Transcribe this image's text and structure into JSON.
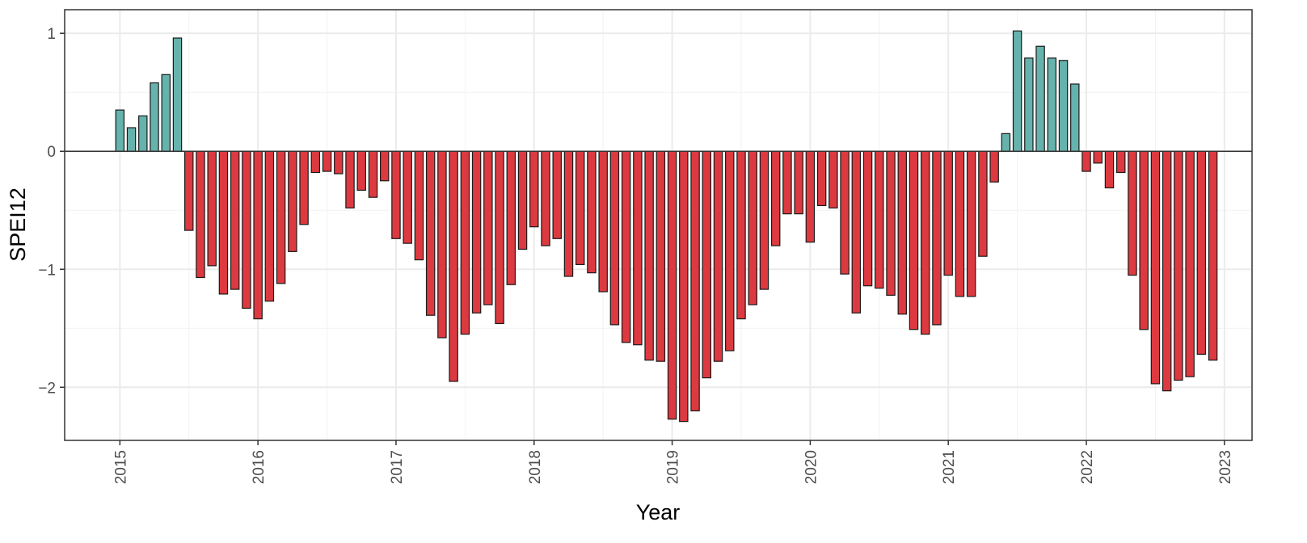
{
  "chart_data": {
    "type": "bar",
    "title": "",
    "xlabel": "Year",
    "ylabel": "SPEI12",
    "xlim": [
      2014.6,
      2023.2
    ],
    "ylim": [
      -2.45,
      1.2
    ],
    "x_ticks": [
      2015,
      2016,
      2017,
      2018,
      2019,
      2020,
      2021,
      2022,
      2023
    ],
    "x_tick_labels": [
      "2015",
      "2016",
      "2017",
      "2018",
      "2019",
      "2020",
      "2021",
      "2022",
      "2023"
    ],
    "y_ticks": [
      -2,
      -1,
      0,
      1
    ],
    "y_tick_labels": [
      "−2",
      "−1",
      "0",
      "1"
    ],
    "grid": true,
    "legend": "none",
    "colors": {
      "positive": "#66b2ad",
      "negative": "#dc3a40",
      "outline": "#1a1a1a"
    },
    "series": [
      {
        "x": [
          "2015-01",
          "2015-02",
          "2015-03",
          "2015-04",
          "2015-05",
          "2015-06",
          "2015-07",
          "2015-08",
          "2015-09",
          "2015-10",
          "2015-11",
          "2015-12",
          "2016-01",
          "2016-02",
          "2016-03",
          "2016-04",
          "2016-05",
          "2016-06",
          "2016-07",
          "2016-08",
          "2016-09",
          "2016-10",
          "2016-11",
          "2016-12",
          "2017-01",
          "2017-02",
          "2017-03",
          "2017-04",
          "2017-05",
          "2017-06",
          "2017-07",
          "2017-08",
          "2017-09",
          "2017-10",
          "2017-11",
          "2017-12",
          "2018-01",
          "2018-02",
          "2018-03",
          "2018-04",
          "2018-05",
          "2018-06",
          "2018-07",
          "2018-08",
          "2018-09",
          "2018-10",
          "2018-11",
          "2018-12",
          "2019-01",
          "2019-02",
          "2019-03",
          "2019-04",
          "2019-05",
          "2019-06",
          "2019-07",
          "2019-08",
          "2019-09",
          "2019-10",
          "2019-11",
          "2019-12",
          "2020-01",
          "2020-02",
          "2020-03",
          "2020-04",
          "2020-05",
          "2020-06",
          "2020-07",
          "2020-08",
          "2020-09",
          "2020-10",
          "2020-11",
          "2020-12",
          "2021-01",
          "2021-02",
          "2021-03",
          "2021-04",
          "2021-05",
          "2021-06",
          "2021-07",
          "2021-08",
          "2021-09",
          "2021-10",
          "2021-11",
          "2021-12",
          "2022-01",
          "2022-02",
          "2022-03",
          "2022-04",
          "2022-05",
          "2022-06",
          "2022-07",
          "2022-08",
          "2022-09",
          "2022-10",
          "2022-11",
          "2022-12"
        ],
        "values": [
          0.35,
          0.2,
          0.3,
          0.58,
          0.65,
          0.96,
          -0.67,
          -1.07,
          -0.97,
          -1.21,
          -1.17,
          -1.33,
          -1.42,
          -1.27,
          -1.12,
          -0.85,
          -0.62,
          -0.18,
          -0.17,
          -0.19,
          -0.48,
          -0.33,
          -0.39,
          -0.25,
          -0.74,
          -0.78,
          -0.92,
          -1.39,
          -1.58,
          -1.95,
          -1.55,
          -1.37,
          -1.3,
          -1.46,
          -1.13,
          -0.83,
          -0.64,
          -0.8,
          -0.74,
          -1.06,
          -0.96,
          -1.03,
          -1.19,
          -1.47,
          -1.62,
          -1.64,
          -1.77,
          -1.78,
          -2.27,
          -2.29,
          -2.2,
          -1.92,
          -1.78,
          -1.69,
          -1.42,
          -1.3,
          -1.17,
          -0.8,
          -0.53,
          -0.53,
          -0.77,
          -0.46,
          -0.48,
          -1.04,
          -1.37,
          -1.14,
          -1.16,
          -1.22,
          -1.38,
          -1.51,
          -1.55,
          -1.47,
          -1.05,
          -1.23,
          -1.23,
          -0.89,
          -0.26,
          0.15,
          1.02,
          0.79,
          0.89,
          0.79,
          0.77,
          0.57,
          -0.17,
          -0.1,
          -0.31,
          -0.18,
          -1.05,
          -1.51,
          -1.97,
          -2.03,
          -1.94,
          -1.91,
          -1.72,
          -1.77
        ]
      }
    ]
  }
}
